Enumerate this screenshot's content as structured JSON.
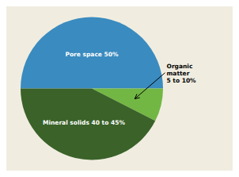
{
  "chart_data": {
    "type": "pie",
    "categories": [
      "Pore space 50%",
      "Organic\nmatter\n5 to 10%",
      "Mineral solids 40 to 45%"
    ],
    "values": [
      50.0,
      7.5,
      42.5
    ],
    "colors": [
      "#3a8bbf",
      "#72b744",
      "#3a6229"
    ]
  }
}
